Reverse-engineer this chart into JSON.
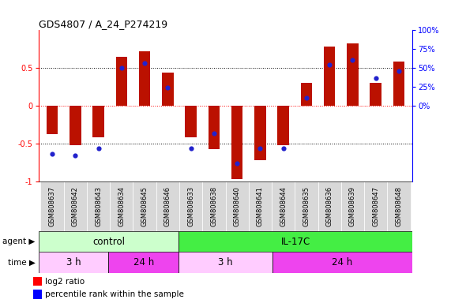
{
  "title": "GDS4807 / A_24_P274219",
  "samples": [
    "GSM808637",
    "GSM808642",
    "GSM808643",
    "GSM808634",
    "GSM808645",
    "GSM808646",
    "GSM808633",
    "GSM808638",
    "GSM808640",
    "GSM808641",
    "GSM808644",
    "GSM808635",
    "GSM808636",
    "GSM808639",
    "GSM808647",
    "GSM808648"
  ],
  "log2_ratio": [
    -0.38,
    -0.52,
    -0.42,
    0.65,
    0.72,
    0.44,
    -0.42,
    -0.57,
    -0.97,
    -0.72,
    -0.52,
    0.3,
    0.78,
    0.82,
    0.3,
    0.58
  ],
  "percentile": [
    18,
    17,
    22,
    75,
    78,
    62,
    22,
    32,
    12,
    22,
    22,
    55,
    77,
    80,
    68,
    73
  ],
  "bar_color": "#bb1100",
  "dot_color": "#2222cc",
  "agent_groups": [
    {
      "label": "control",
      "start": 0,
      "end": 6,
      "color": "#ccffcc"
    },
    {
      "label": "IL-17C",
      "start": 6,
      "end": 16,
      "color": "#44ee44"
    }
  ],
  "time_groups": [
    {
      "label": "3 h",
      "start": 0,
      "end": 3,
      "color": "#ffccff"
    },
    {
      "label": "24 h",
      "start": 3,
      "end": 6,
      "color": "#ee44ee"
    },
    {
      "label": "3 h",
      "start": 6,
      "end": 10,
      "color": "#ffccff"
    },
    {
      "label": "24 h",
      "start": 10,
      "end": 16,
      "color": "#ee44ee"
    }
  ],
  "ylim": [
    -1.0,
    1.0
  ],
  "yticks_left": [
    -1.0,
    -0.5,
    0.0,
    0.5
  ],
  "ytick_labels_left": [
    "-1",
    "-0.5",
    "0",
    "0.5"
  ],
  "yticks_right_vals": [
    0.0,
    0.25,
    0.5,
    0.75,
    1.0
  ],
  "ytick_labels_right": [
    "0%",
    "25%",
    "50%",
    "75%",
    "100%"
  ],
  "bar_width": 0.5,
  "dot_size": 20,
  "background_color": "#ffffff",
  "legend_red": "log2 ratio",
  "legend_blue": "percentile rank within the sample"
}
